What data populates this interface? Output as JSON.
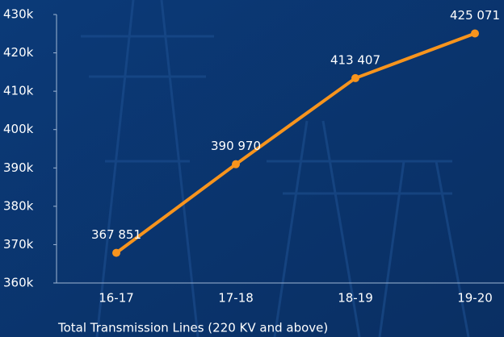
{
  "chart_data": {
    "type": "line",
    "x_label": "Total Transmission Lines (220 KV and above)",
    "categories": [
      "16-17",
      "17-18",
      "18-19",
      "19-20"
    ],
    "values": [
      367851,
      390970,
      413407,
      425071
    ],
    "value_labels": [
      "367 851",
      "390 970",
      "413 407",
      "425 071"
    ],
    "color": "#f7941d",
    "ylim": [
      360000,
      430000
    ],
    "yticks": [
      {
        "value": 360000,
        "label": "360k"
      },
      {
        "value": 370000,
        "label": "370k"
      },
      {
        "value": 380000,
        "label": "380k"
      },
      {
        "value": 390000,
        "label": "390k"
      },
      {
        "value": 400000,
        "label": "400k"
      },
      {
        "value": 410000,
        "label": "410k"
      },
      {
        "value": 420000,
        "label": "420k"
      },
      {
        "value": 430000,
        "label": "430k"
      }
    ]
  }
}
